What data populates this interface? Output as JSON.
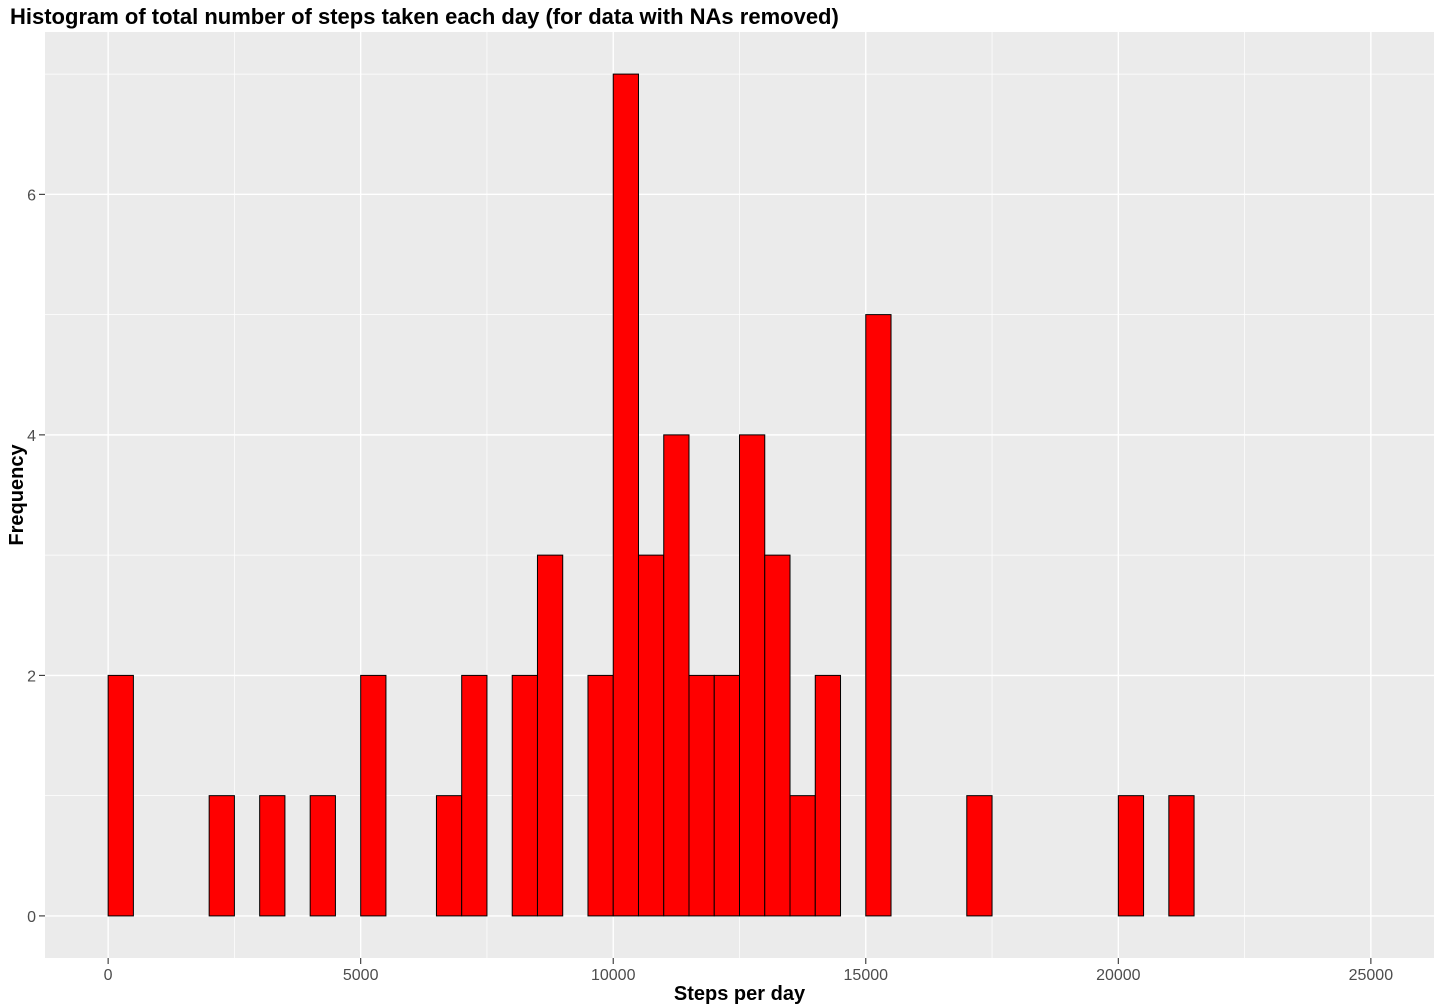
{
  "chart_data": {
    "type": "bar",
    "title": "Histogram of total number of steps taken each day (for data with NAs removed)",
    "xlabel": "Steps per day",
    "ylabel": "Frequency",
    "xlim": [
      -1250,
      26250
    ],
    "ylim": [
      -0.35,
      7.35
    ],
    "x_ticks": [
      0,
      5000,
      10000,
      15000,
      20000,
      25000
    ],
    "x_tick_labels": [
      "0",
      "5000",
      "10000",
      "15000",
      "20000",
      "25000"
    ],
    "y_ticks": [
      0,
      2,
      4,
      6
    ],
    "y_tick_labels": [
      "0",
      "2",
      "4",
      "6"
    ],
    "bin_width": 500,
    "bin_starts": [
      0,
      500,
      1000,
      1500,
      2000,
      2500,
      3000,
      3500,
      4000,
      4500,
      5000,
      5500,
      6000,
      6500,
      7000,
      7500,
      8000,
      8500,
      9000,
      9500,
      10000,
      10500,
      11000,
      11500,
      12000,
      12500,
      13000,
      13500,
      14000,
      14500,
      15000,
      15500,
      16000,
      16500,
      17000,
      17500,
      18000,
      18500,
      19000,
      19500,
      20000,
      20500,
      21000,
      21500,
      22000,
      22500,
      23000,
      23500,
      24000,
      24500
    ],
    "values": [
      2,
      0,
      0,
      0,
      1,
      0,
      1,
      0,
      1,
      0,
      2,
      0,
      0,
      1,
      2,
      0,
      2,
      3,
      0,
      2,
      7,
      3,
      4,
      2,
      2,
      4,
      3,
      1,
      2,
      0,
      5,
      0,
      0,
      0,
      1,
      0,
      0,
      0,
      0,
      0,
      1,
      0,
      1,
      0,
      0,
      0,
      0,
      0,
      0,
      0
    ],
    "bar_color": "#ff0000",
    "bar_border_color": "#000000",
    "panel_color": "#ebebeb",
    "grid": true
  }
}
